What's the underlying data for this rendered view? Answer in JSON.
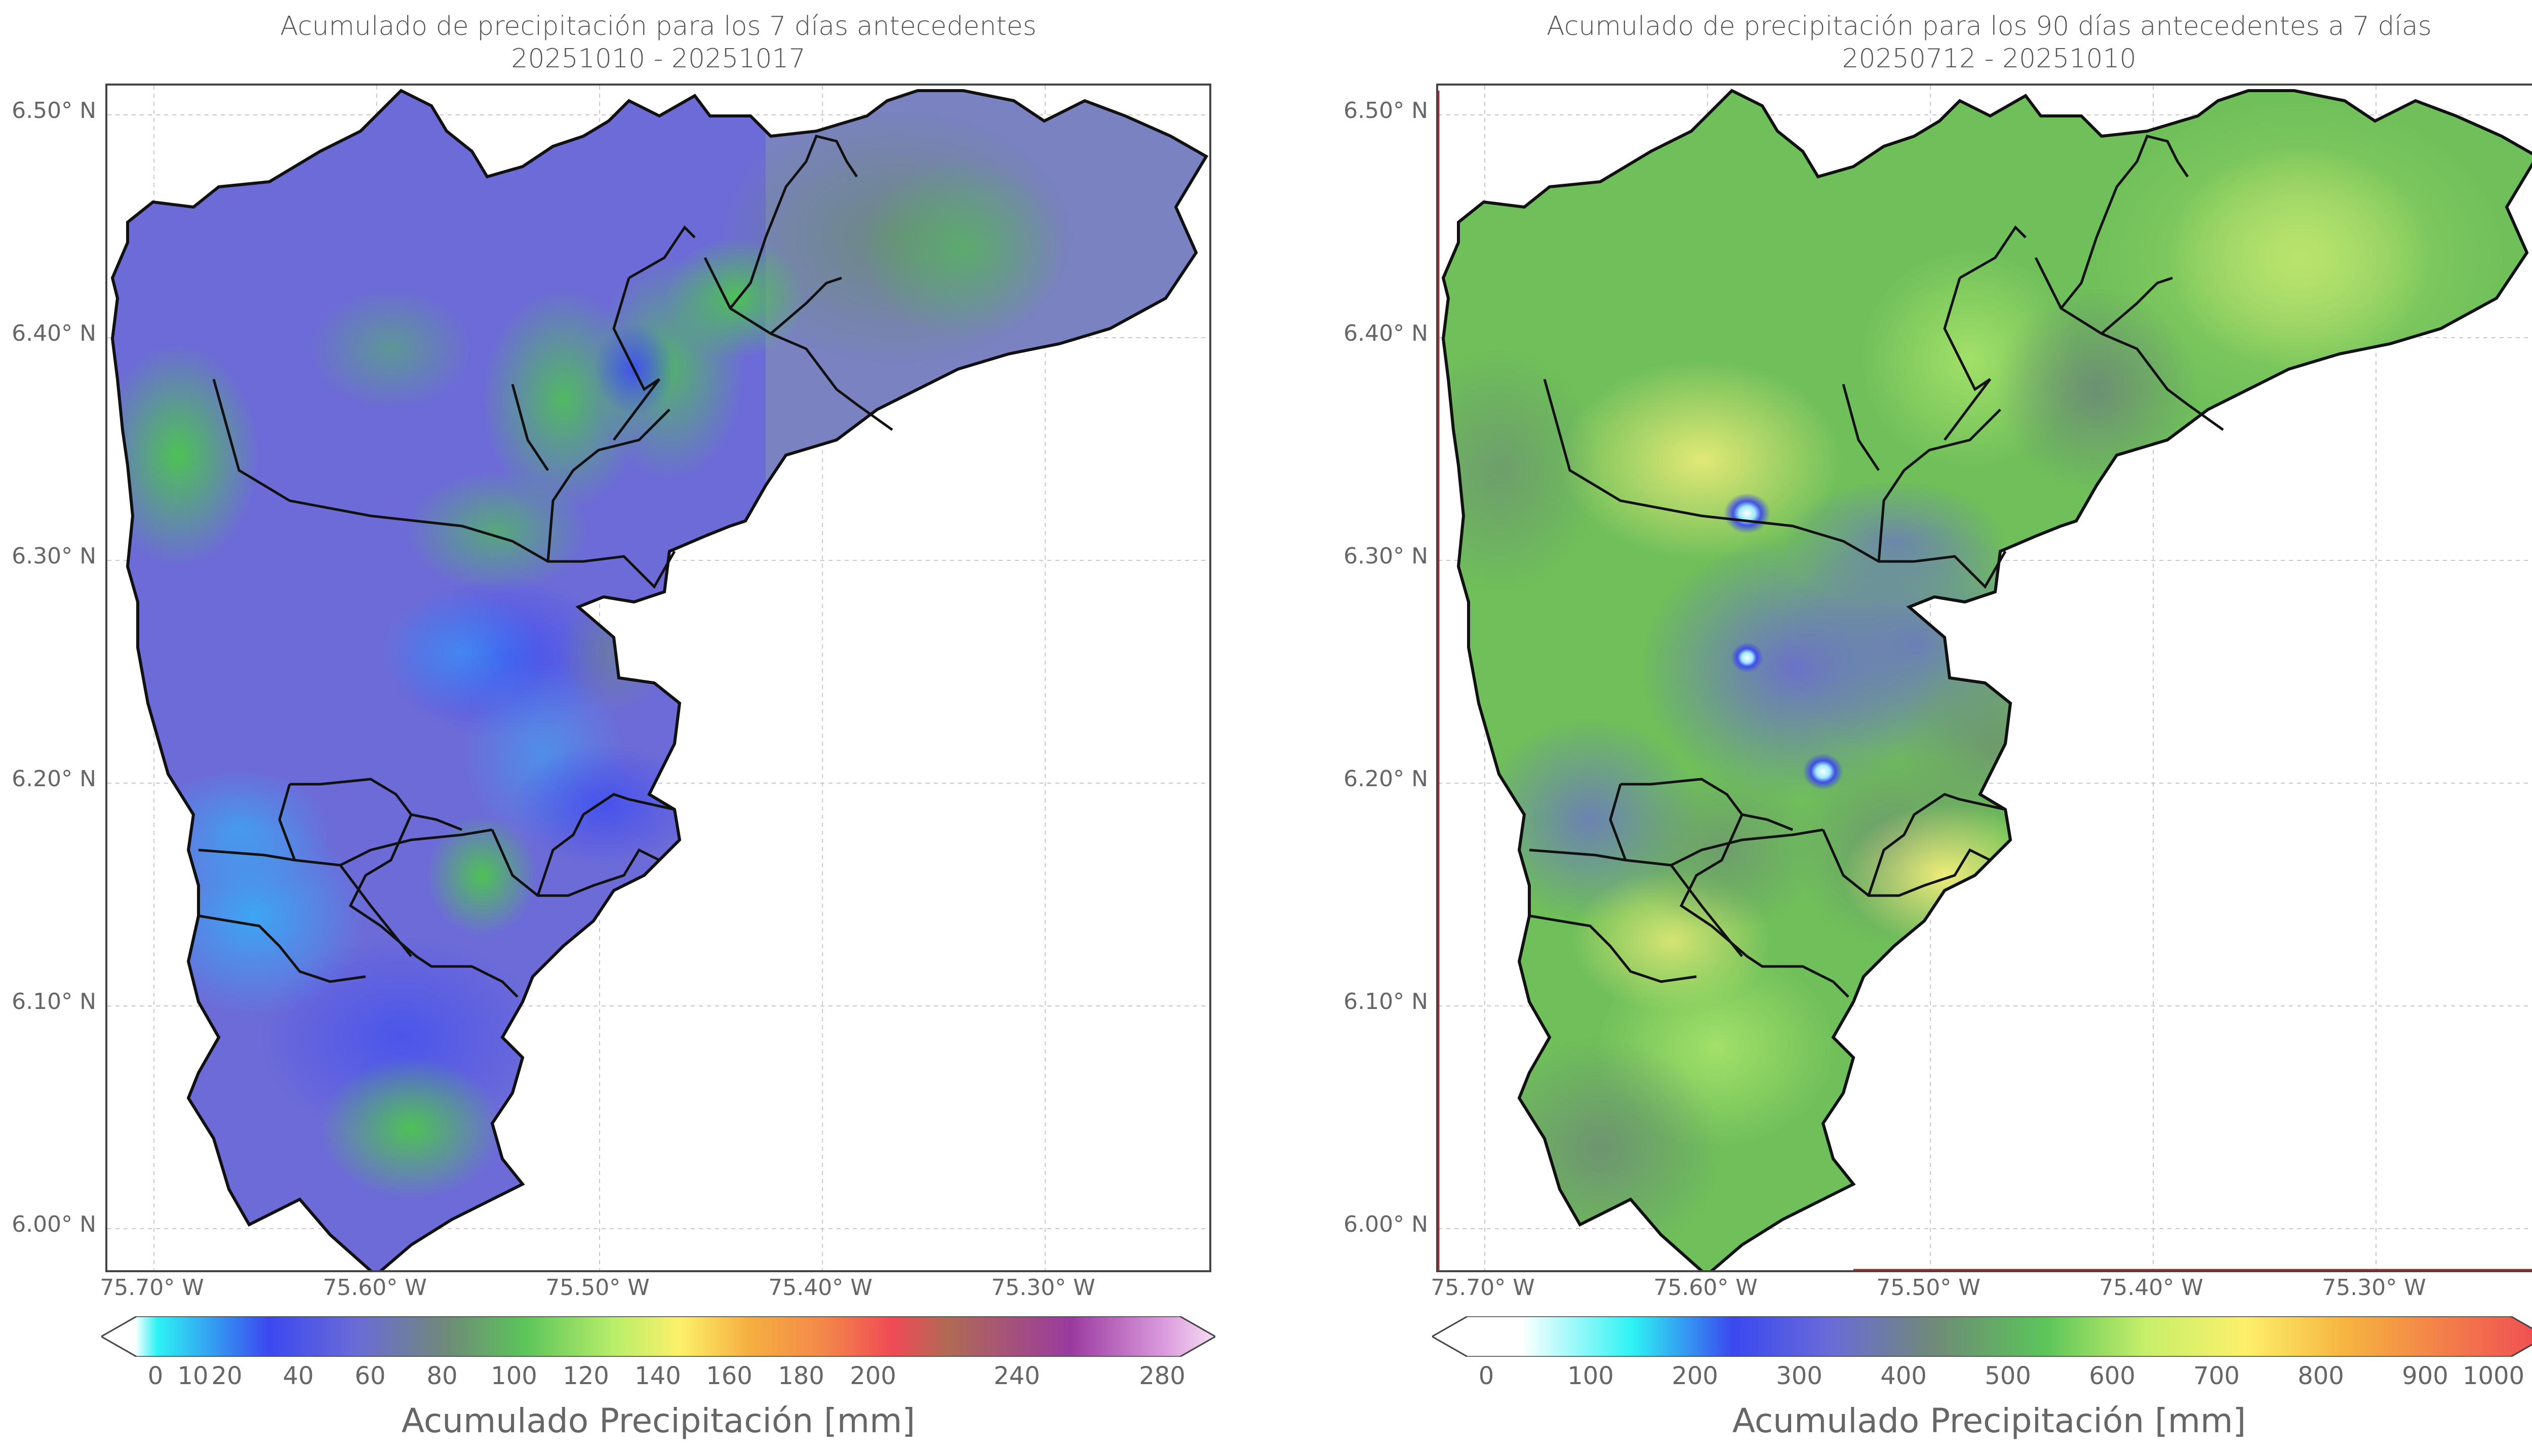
{
  "panels": [
    {
      "id": "left",
      "title_line1": "Acumulado de precipitación para los 7 días antecedentes",
      "title_line2": "20251010 - 20251017",
      "lat_ticks": [
        "6.50° N",
        "6.40° N",
        "6.30° N",
        "6.20° N",
        "6.10° N",
        "6.00° N"
      ],
      "lon_ticks": [
        "75.70° W",
        "75.60° W",
        "75.50° W",
        "75.40° W",
        "75.30° W"
      ],
      "colorbar_ticks": [
        "0",
        "10",
        "20",
        "40",
        "60",
        "80",
        "100",
        "120",
        "140",
        "160",
        "180",
        "200",
        "240",
        "280"
      ],
      "colorbar_label": "Acumulado Precipitación [mm]",
      "dominant_color": "#6e6ad8"
    },
    {
      "id": "right",
      "title_line1": "Acumulado de precipitación para los 90 días antecedentes a 7 días",
      "title_line2": "20250712 - 20251010",
      "lat_ticks": [
        "6.50° N",
        "6.40° N",
        "6.30° N",
        "6.20° N",
        "6.10° N",
        "6.00° N"
      ],
      "lon_ticks": [
        "75.70° W",
        "75.60° W",
        "75.50° W",
        "75.40° W",
        "75.30° W"
      ],
      "colorbar_ticks": [
        "0",
        "100",
        "200",
        "300",
        "400",
        "500",
        "600",
        "700",
        "800",
        "900",
        "1000"
      ],
      "colorbar_label": "Acumulado Precipitación [mm]",
      "dominant_color": "#6fc058"
    }
  ]
}
